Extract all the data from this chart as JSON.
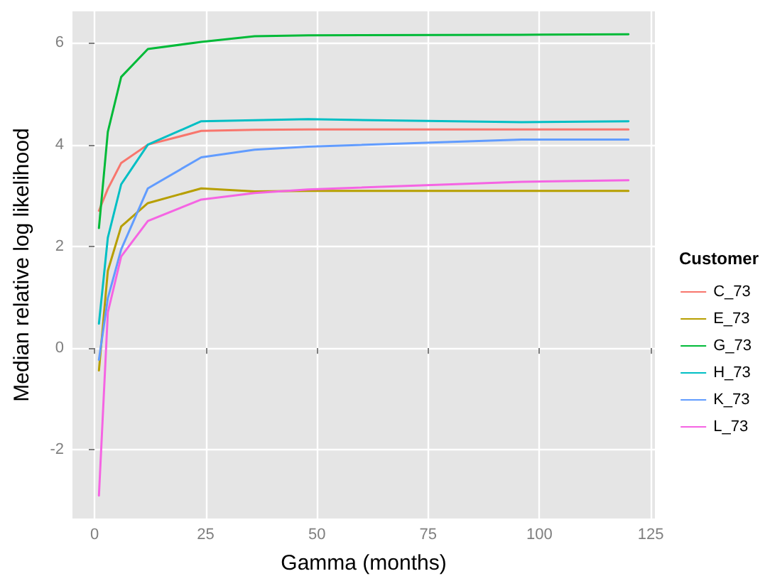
{
  "chart_data": {
    "type": "line",
    "xlabel": "Gamma (months)",
    "ylabel": "Median relative log likelihood",
    "legend_title": "Customer",
    "legend": "right",
    "grid": true,
    "marker": "none",
    "line_style": "solid",
    "xlim": [
      -4.95,
      125.95
    ],
    "xticks": [
      0,
      25,
      50,
      75,
      100,
      125
    ],
    "ylim": [
      -3.35,
      6.62
    ],
    "yticks": [
      -2,
      0,
      2,
      4,
      6
    ],
    "x": [
      1,
      3,
      6,
      12,
      24,
      36,
      48,
      96,
      120
    ],
    "series": [
      {
        "name": "C_73",
        "color": "#f8766d",
        "values": [
          2.7,
          3.13,
          3.64,
          4.0,
          4.27,
          4.29,
          4.3,
          4.3,
          4.3
        ]
      },
      {
        "name": "E_73",
        "color": "#b79f00",
        "values": [
          -0.44,
          1.52,
          2.39,
          2.85,
          3.14,
          3.08,
          3.09,
          3.09,
          3.09
        ]
      },
      {
        "name": "G_73",
        "color": "#00ba38",
        "values": [
          2.36,
          4.25,
          5.33,
          5.88,
          6.02,
          6.13,
          6.15,
          6.16,
          6.17
        ]
      },
      {
        "name": "H_73",
        "color": "#00bfc4",
        "values": [
          0.48,
          2.17,
          3.22,
          4.0,
          4.46,
          4.48,
          4.5,
          4.44,
          4.46
        ]
      },
      {
        "name": "K_73",
        "color": "#619cff",
        "values": [
          -0.23,
          0.98,
          1.94,
          3.14,
          3.75,
          3.9,
          3.96,
          4.1,
          4.1
        ]
      },
      {
        "name": "L_73",
        "color": "#f564e3",
        "values": [
          -2.9,
          0.7,
          1.8,
          2.5,
          2.92,
          3.05,
          3.12,
          3.27,
          3.3
        ]
      }
    ]
  }
}
